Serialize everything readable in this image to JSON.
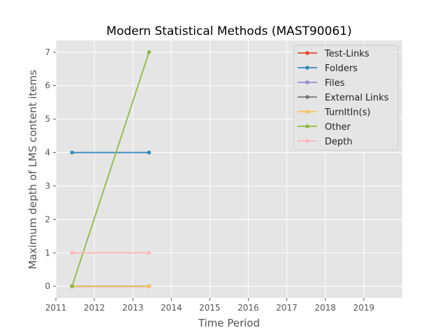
{
  "chart_data": {
    "type": "line",
    "title": "Modern Statistical Methods (MAST90061)",
    "xlabel": "Time Period",
    "ylabel": "Maximum depth of LMS content items",
    "xlim": [
      2011.0,
      2020.0
    ],
    "ylim": [
      -0.35,
      7.35
    ],
    "x_ticks": [
      "2011",
      "2012",
      "2013",
      "2014",
      "2015",
      "2016",
      "2017",
      "2018",
      "2019"
    ],
    "y_ticks": [
      "0",
      "1",
      "2",
      "3",
      "4",
      "5",
      "6",
      "7"
    ],
    "x": [
      2011.42,
      2013.42
    ],
    "series": [
      {
        "name": "Test-Links",
        "color": "#E24A33",
        "values": [
          0,
          0
        ]
      },
      {
        "name": "Folders",
        "color": "#348ABD",
        "values": [
          4,
          4
        ]
      },
      {
        "name": "Files",
        "color": "#988ED5",
        "values": [
          0,
          0
        ]
      },
      {
        "name": "External Links",
        "color": "#777777",
        "values": [
          0,
          0
        ]
      },
      {
        "name": "TurnItIn(s)",
        "color": "#FBC15E",
        "values": [
          0,
          0
        ]
      },
      {
        "name": "Other",
        "color": "#8EBA42",
        "values": [
          0,
          7
        ]
      },
      {
        "name": "Depth",
        "color": "#FFB5B8",
        "values": [
          1,
          1
        ]
      }
    ],
    "grid": true,
    "legend_position": "top-right",
    "background": "#E5E5E5"
  }
}
